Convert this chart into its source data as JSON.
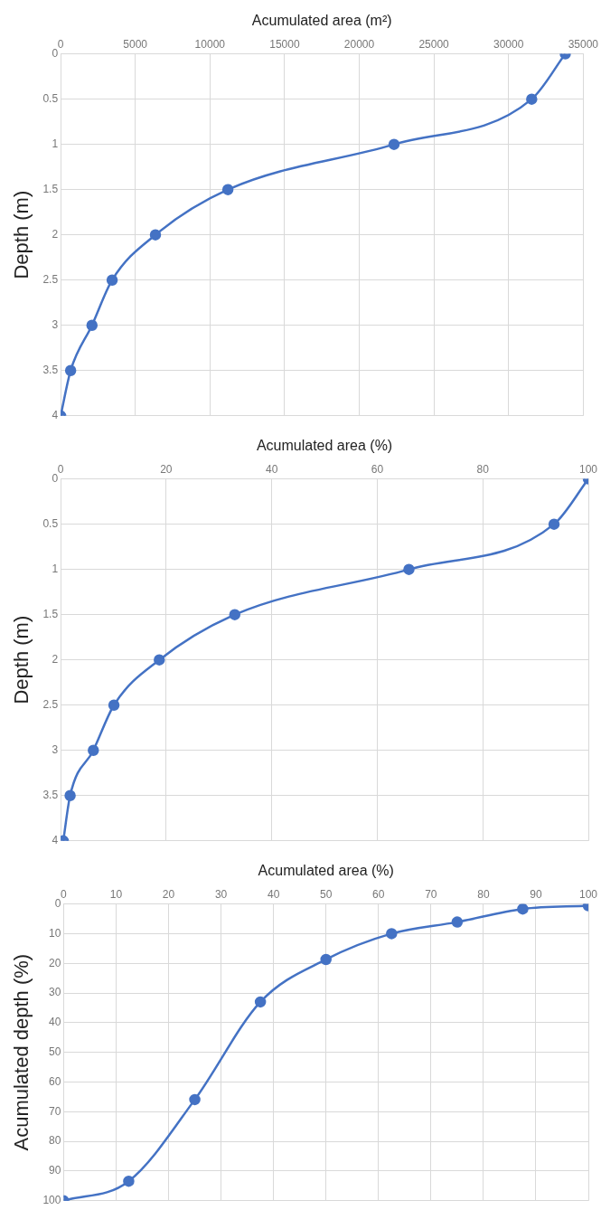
{
  "chart_data": [
    {
      "type": "line",
      "xlabel": "Acumulated area (m²)",
      "ylabel": "Depth (m)",
      "xlim": [
        0,
        35000
      ],
      "xticks": [
        0,
        5000,
        10000,
        15000,
        20000,
        25000,
        30000,
        35000
      ],
      "ylim": [
        4,
        0
      ],
      "yticks": [
        0,
        0.5,
        1,
        1.5,
        2,
        2.5,
        3,
        3.5,
        4
      ],
      "grid": true,
      "marker": "circle",
      "legend": false,
      "series": [
        {
          "color": "#4472c4",
          "x": [
            33800,
            31550,
            22330,
            11200,
            6350,
            3450,
            2100,
            670,
            0
          ],
          "values": [
            0,
            0.5,
            1,
            1.5,
            2,
            2.5,
            3,
            3.5,
            4
          ]
        }
      ]
    },
    {
      "type": "line",
      "xlabel": "Acumulated area (%)",
      "ylabel": "Depth (m)",
      "xlim": [
        0,
        100
      ],
      "xticks": [
        0,
        20,
        40,
        60,
        80,
        100
      ],
      "ylim": [
        4,
        0
      ],
      "yticks": [
        0,
        0.5,
        1,
        1.5,
        2,
        2.5,
        3,
        3.5,
        4
      ],
      "grid": true,
      "marker": "circle",
      "legend": false,
      "series": [
        {
          "color": "#4472c4",
          "x": [
            100,
            93.5,
            66,
            33,
            18.7,
            10.1,
            6.2,
            1.8,
            0.5
          ],
          "values": [
            0,
            0.5,
            1,
            1.5,
            2,
            2.5,
            3,
            3.5,
            4
          ]
        }
      ]
    },
    {
      "type": "line",
      "xlabel": "Acumulated area (%)",
      "ylabel": "Acumulated depth (%)",
      "xlim": [
        0,
        100
      ],
      "xticks": [
        0,
        10,
        20,
        30,
        40,
        50,
        60,
        70,
        80,
        90,
        100
      ],
      "ylim": [
        100,
        0
      ],
      "yticks": [
        0,
        10,
        20,
        30,
        40,
        50,
        60,
        70,
        80,
        90,
        100
      ],
      "grid": true,
      "marker": "circle",
      "legend": false,
      "series": [
        {
          "color": "#4472c4",
          "x": [
            0,
            12.4,
            25,
            37.5,
            50,
            62.5,
            75,
            87.5,
            100
          ],
          "values": [
            100,
            93.4,
            65.9,
            33,
            18.7,
            10,
            6.1,
            1.7,
            0.6
          ]
        }
      ]
    }
  ]
}
